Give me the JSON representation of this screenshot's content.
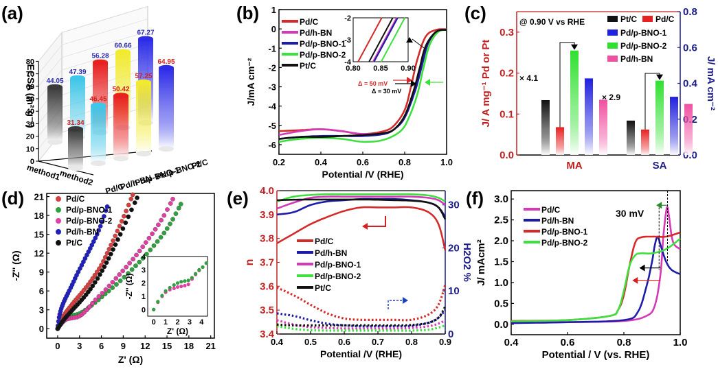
{
  "figure": {
    "panel_labels": [
      "(a)",
      "(b)",
      "(c)",
      "(d)",
      "(e)",
      "(f)"
    ]
  },
  "chart_data": [
    {
      "panel": "(a)",
      "type": "bar",
      "subtype": "3d-cylinder",
      "title": "",
      "ylabel": "ECSA (m² g⁻¹)",
      "ylim": [
        0,
        80
      ],
      "yticks": [
        0,
        10,
        20,
        30,
        40,
        50,
        60,
        70,
        80
      ],
      "grid": true,
      "rows": [
        "method1",
        "method2"
      ],
      "categories": [
        "Pd/C",
        "Pd/h-BN",
        "Pd/p-BNO-1",
        "Pd/p-BNO-2",
        "Pt/C"
      ],
      "series": [
        {
          "name": "method1",
          "label_color": "#2a2ab0",
          "values": [
            44.05,
            47.39,
            56.28,
            60.66,
            67.27
          ]
        },
        {
          "name": "method2",
          "label_color": "#d42020",
          "values": [
            31.34,
            46.45,
            50.42,
            57.25,
            64.95
          ]
        }
      ],
      "bar_colors": [
        "#3a3a3a",
        "#3fc6e8",
        "#e82020",
        "#f2ea30",
        "#2c2ce8"
      ]
    },
    {
      "panel": "(b)",
      "type": "line",
      "xlabel": "Potential /V (RHE)",
      "ylabel": "J/mA cm⁻²",
      "xlim": [
        0.2,
        1.0
      ],
      "ylim": [
        -6.5,
        1
      ],
      "xticks": [
        0.2,
        0.4,
        0.6,
        0.8,
        1.0
      ],
      "yticks": [
        -6,
        -5,
        -4,
        -3,
        -2,
        -1,
        0,
        1
      ],
      "legend": "top-left",
      "series": [
        {
          "name": "Pd/C",
          "color": "#d42a2a",
          "x": [
            0.2,
            0.3,
            0.4,
            0.5,
            0.6,
            0.7,
            0.75,
            0.8,
            0.83,
            0.86,
            0.9,
            0.95,
            1.0
          ],
          "y": [
            -5.3,
            -5.25,
            -5.2,
            -5.3,
            -5.45,
            -5.3,
            -5.0,
            -4.2,
            -3.0,
            -1.6,
            -0.4,
            -0.05,
            -0.02
          ]
        },
        {
          "name": "Pd/h-BN",
          "color": "#d43ab8",
          "x": [
            0.2,
            0.3,
            0.4,
            0.5,
            0.6,
            0.7,
            0.75,
            0.8,
            0.84,
            0.87,
            0.9,
            0.95,
            1.0
          ],
          "y": [
            -5.5,
            -5.3,
            -5.2,
            -5.3,
            -5.45,
            -5.4,
            -5.2,
            -4.6,
            -3.4,
            -2.2,
            -0.9,
            -0.15,
            -0.05
          ]
        },
        {
          "name": "Pd/p-BNO-1",
          "color": "#1c1ca8",
          "x": [
            0.2,
            0.3,
            0.4,
            0.5,
            0.6,
            0.7,
            0.75,
            0.8,
            0.85,
            0.88,
            0.91,
            0.95,
            1.0
          ],
          "y": [
            -5.7,
            -5.6,
            -5.55,
            -5.55,
            -5.55,
            -5.45,
            -5.2,
            -4.6,
            -3.2,
            -2.0,
            -0.8,
            -0.15,
            -0.05
          ]
        },
        {
          "name": "Pd/p-BNO-2",
          "color": "#3ee03e",
          "x": [
            0.2,
            0.3,
            0.4,
            0.5,
            0.6,
            0.7,
            0.78,
            0.82,
            0.86,
            0.89,
            0.92,
            0.96,
            1.0
          ],
          "y": [
            -5.85,
            -5.7,
            -5.65,
            -5.7,
            -5.85,
            -5.75,
            -5.3,
            -4.6,
            -3.4,
            -2.0,
            -0.8,
            -0.15,
            -0.05
          ]
        },
        {
          "name": "Pt/C",
          "color": "#111111",
          "x": [
            0.2,
            0.3,
            0.4,
            0.5,
            0.6,
            0.7,
            0.75,
            0.8,
            0.84,
            0.87,
            0.9,
            0.95,
            1.0
          ],
          "y": [
            -5.7,
            -5.6,
            -5.6,
            -5.55,
            -5.5,
            -5.4,
            -5.2,
            -4.5,
            -3.3,
            -2.1,
            -0.9,
            -0.15,
            -0.05
          ]
        }
      ],
      "annotations": [
        "Δ = 50 mV",
        "Δ = 30 mV"
      ],
      "inset": {
        "xlim": [
          0.8,
          0.9
        ],
        "ylim": [
          -4,
          -2
        ],
        "xticks": [
          0.8,
          0.85,
          0.9
        ],
        "yticks": [
          -2,
          -3,
          -4
        ]
      }
    },
    {
      "panel": "(c)",
      "type": "bar",
      "annotation": "@ 0.90 V vs RHE",
      "categories": [
        "MA",
        "SA"
      ],
      "ylabel_left": "J/ A mg⁻¹ Pd or Pt",
      "ylabel_right": "J/ mA cm⁻²",
      "ylim_left": [
        0,
        0.35
      ],
      "ylim_right": [
        0,
        0.8
      ],
      "yticks_left": [
        0.0,
        0.1,
        0.2,
        0.3
      ],
      "yticks_right": [
        0.0,
        0.2,
        0.4,
        0.6,
        0.8
      ],
      "legend": "top-right",
      "series": [
        {
          "name": "Pt/C",
          "color": "#111111",
          "values": [
            0.134,
            0.192
          ]
        },
        {
          "name": "Pd/C",
          "color": "#e82020",
          "values": [
            0.068,
            0.142
          ]
        },
        {
          "name": "Pd/p-BNO-2",
          "color": "#30e030",
          "values": [
            0.255,
            0.415
          ]
        },
        {
          "name": "Pd/p-BNO-1",
          "color": "#2020e0",
          "values": [
            0.187,
            0.325
          ]
        },
        {
          "name": "Pd/h-BN",
          "color": "#f050a0",
          "values": [
            0.135,
            0.285
          ]
        }
      ],
      "legend_order": [
        "Pt/C",
        "Pd/C",
        "Pd/p-BNO-1",
        "Pd/p-BNO-2",
        "Pd/h-BN"
      ],
      "multipliers": [
        "× 4.1",
        "× 2.9"
      ]
    },
    {
      "panel": "(d)",
      "type": "scatter",
      "xlabel": "Z' (Ω)",
      "ylabel": "-Z'' (Ω)",
      "xlim": [
        -1.5,
        21.5
      ],
      "ylim": [
        -1.5,
        21.5
      ],
      "xticks": [
        0,
        3,
        6,
        9,
        12,
        15,
        18,
        21
      ],
      "yticks": [
        0,
        3,
        6,
        9,
        12,
        15,
        18,
        21
      ],
      "legend": "top-left",
      "series": [
        {
          "name": "Pd/C",
          "color": "#d84040",
          "x": [
            0,
            0.3,
            0.7,
            1.2,
            1.8,
            2.5,
            3.3,
            4.2,
            5.1,
            6.0,
            6.8,
            7.6,
            8.5,
            9.4,
            10.3
          ],
          "y": [
            0,
            0.9,
            1.8,
            2.7,
            3.6,
            4.6,
            5.7,
            7.0,
            8.5,
            10.1,
            12.0,
            14.0,
            16.3,
            18.7,
            21.3
          ]
        },
        {
          "name": "Pd/p-BNO-1",
          "color": "#30a040",
          "x": [
            0,
            0.5,
            1.2,
            2.0,
            3.0,
            4.2,
            5.6,
            7.0,
            8.6,
            10.2,
            11.7,
            13.2,
            14.6,
            15.8,
            16.9
          ],
          "y": [
            0,
            0.9,
            1.7,
            2.1,
            2.4,
            3.3,
            4.6,
            6.0,
            7.6,
            9.4,
            11.2,
            13.2,
            15.2,
            17.4,
            19.8
          ]
        },
        {
          "name": "Pd/p-BNO-2",
          "color": "#e040a0",
          "x": [
            0,
            0.5,
            1.2,
            2.0,
            3.0,
            4.0,
            5.2,
            6.6,
            8.0,
            9.4,
            10.8,
            12.1,
            13.4,
            14.6,
            15.8
          ],
          "y": [
            0,
            0.8,
            1.5,
            1.7,
            2.0,
            3.0,
            4.6,
            6.2,
            8.0,
            9.8,
            11.7,
            13.7,
            15.8,
            18.0,
            20.6
          ]
        },
        {
          "name": "Pd/h-BN",
          "color": "#2020c0",
          "x": [
            0,
            0.2,
            0.5,
            0.9,
            1.4,
            2.0,
            2.6,
            3.3,
            4.0,
            4.7,
            5.4,
            6.1,
            6.8
          ],
          "y": [
            0,
            1.8,
            3.2,
            4.4,
            5.6,
            7.0,
            8.5,
            10.1,
            11.7,
            13.3,
            15.0,
            17.0,
            19.4
          ]
        },
        {
          "name": "Pt/C",
          "color": "#111111",
          "x": [
            0,
            0.4,
            0.9,
            1.5,
            2.2,
            3.0,
            3.9,
            4.8,
            5.8,
            6.7,
            7.6,
            8.6,
            9.7,
            10.9
          ],
          "y": [
            0,
            0.7,
            1.5,
            2.3,
            3.2,
            4.2,
            5.4,
            6.8,
            8.6,
            10.5,
            12.6,
            15.0,
            17.8,
            20.8
          ]
        }
      ],
      "inset": {
        "xlabel": "Z' (Ω)",
        "ylabel": "-Z'' (Ω)",
        "xlim": [
          -0.5,
          4.5
        ],
        "ylim": [
          -0.5,
          4
        ],
        "xticks": [
          0,
          1,
          2,
          3,
          4
        ],
        "yticks": [
          0,
          1,
          2,
          3,
          4
        ]
      }
    },
    {
      "panel": "(e)",
      "type": "line",
      "xlabel": "Potential /V (RHE)",
      "ylabel_left": "n",
      "ylabel_right": "H2O2 %",
      "xlim": [
        0.4,
        0.9
      ],
      "ylim_left": [
        3.4,
        4.0
      ],
      "ylim_right": [
        0,
        33.3
      ],
      "xticks": [
        0.4,
        0.5,
        0.6,
        0.7,
        0.8,
        0.9
      ],
      "yticks_left": [
        3.4,
        3.5,
        3.6,
        3.7,
        3.8,
        3.9,
        4.0
      ],
      "yticks_right": [
        0,
        10,
        20,
        30
      ],
      "legend": "center-left",
      "series": [
        {
          "name": "Pd/C",
          "color": "#d42a2a",
          "x": [
            0.4,
            0.45,
            0.5,
            0.55,
            0.6,
            0.65,
            0.7,
            0.75,
            0.8,
            0.85,
            0.88,
            0.9
          ],
          "n": [
            3.78,
            3.82,
            3.86,
            3.89,
            3.915,
            3.93,
            3.93,
            3.93,
            3.93,
            3.91,
            3.86,
            3.75
          ],
          "h2o2": [
            10.8,
            9.0,
            6.8,
            4.8,
            3.6,
            3.3,
            3.3,
            3.3,
            3.3,
            4.5,
            6.8,
            11.5
          ]
        },
        {
          "name": "Pd/h-BN",
          "color": "#1c1ca8",
          "x": [
            0.4,
            0.45,
            0.5,
            0.55,
            0.6,
            0.65,
            0.7,
            0.75,
            0.8,
            0.85,
            0.88,
            0.9
          ],
          "n": [
            3.9,
            3.91,
            3.94,
            3.955,
            3.96,
            3.965,
            3.965,
            3.965,
            3.96,
            3.95,
            3.93,
            3.89
          ],
          "h2o2": [
            4.8,
            4.2,
            3.2,
            2.4,
            2.0,
            1.8,
            1.8,
            1.8,
            1.9,
            2.6,
            3.8,
            5.6
          ]
        },
        {
          "name": "Pd/p-BNO-1",
          "color": "#d43ab8",
          "x": [
            0.4,
            0.45,
            0.5,
            0.55,
            0.6,
            0.65,
            0.7,
            0.75,
            0.8,
            0.85,
            0.88,
            0.9
          ],
          "n": [
            3.925,
            3.95,
            3.97,
            3.975,
            3.975,
            3.975,
            3.975,
            3.975,
            3.975,
            3.97,
            3.96,
            3.94
          ],
          "h2o2": [
            3.2,
            2.2,
            1.6,
            1.4,
            1.3,
            1.3,
            1.3,
            1.3,
            1.4,
            1.8,
            2.4,
            3.2
          ]
        },
        {
          "name": "Pd/p-BNO-2",
          "color": "#3ee03e",
          "x": [
            0.4,
            0.45,
            0.5,
            0.55,
            0.6,
            0.65,
            0.7,
            0.75,
            0.8,
            0.85,
            0.88,
            0.9
          ],
          "n": [
            3.955,
            3.975,
            3.982,
            3.985,
            3.985,
            3.985,
            3.985,
            3.985,
            3.985,
            3.98,
            3.97,
            3.955
          ],
          "h2o2": [
            1.8,
            1.2,
            0.9,
            0.8,
            0.8,
            0.8,
            0.8,
            0.8,
            0.8,
            1.0,
            1.5,
            2.0
          ]
        },
        {
          "name": "Pt/C",
          "color": "#111111",
          "x": [
            0.4,
            0.45,
            0.5,
            0.55,
            0.6,
            0.65,
            0.7,
            0.75,
            0.8,
            0.85,
            0.88,
            0.9
          ],
          "n": [
            3.96,
            3.962,
            3.963,
            3.963,
            3.963,
            3.963,
            3.962,
            3.96,
            3.958,
            3.95,
            3.93,
            3.88
          ],
          "h2o2": [
            2.2,
            2.0,
            2.0,
            2.0,
            2.0,
            2.0,
            2.0,
            2.0,
            2.1,
            2.6,
            3.8,
            6.4
          ]
        }
      ]
    },
    {
      "panel": "(f)",
      "type": "line",
      "xlabel": "Potential / V (vs. RHE)",
      "ylabel": "J/ mAcm²",
      "xlim": [
        0.4,
        1.0
      ],
      "ylim": [
        -0.25,
        3.2
      ],
      "xticks": [
        0.4,
        0.6,
        0.8,
        1.0
      ],
      "yticks": [
        0.0,
        0.5,
        1.0,
        1.5,
        2.0,
        2.5,
        3.0
      ],
      "legend": "top-left",
      "annotation": "30 mV",
      "series": [
        {
          "name": "Pd/C",
          "color": "#d43ab8",
          "x": [
            0.4,
            0.6,
            0.8,
            0.88,
            0.91,
            0.93,
            0.94,
            0.95,
            0.955,
            0.96,
            0.97,
            0.98,
            1.0
          ],
          "y": [
            0.03,
            0.05,
            0.08,
            0.2,
            0.45,
            1.2,
            2.1,
            2.7,
            2.8,
            2.6,
            2.1,
            1.9,
            1.8
          ]
        },
        {
          "name": "Pd/h-BN",
          "color": "#1c1ca8",
          "x": [
            0.4,
            0.6,
            0.8,
            0.85,
            0.88,
            0.9,
            0.91,
            0.92,
            0.93,
            0.95,
            0.97,
            1.0
          ],
          "y": [
            0.03,
            0.05,
            0.1,
            0.3,
            0.9,
            1.5,
            1.9,
            2.1,
            1.9,
            1.5,
            1.3,
            1.2
          ]
        },
        {
          "name": "Pd/p-BNO-1",
          "color": "#d42a2a",
          "x": [
            0.4,
            0.6,
            0.75,
            0.78,
            0.8,
            0.82,
            0.84,
            0.86,
            0.9,
            0.95,
            1.0
          ],
          "y": [
            0.08,
            0.1,
            0.2,
            0.35,
            0.7,
            1.4,
            1.95,
            2.08,
            2.1,
            2.1,
            2.2
          ]
        },
        {
          "name": "Pd/p-BNO-2",
          "color": "#3ee03e",
          "x": [
            0.4,
            0.6,
            0.75,
            0.78,
            0.8,
            0.82,
            0.84,
            0.86,
            0.9,
            0.95,
            1.0
          ],
          "y": [
            0.07,
            0.1,
            0.2,
            0.35,
            0.8,
            1.4,
            1.65,
            1.7,
            1.7,
            1.8,
            2.05
          ]
        }
      ]
    }
  ]
}
